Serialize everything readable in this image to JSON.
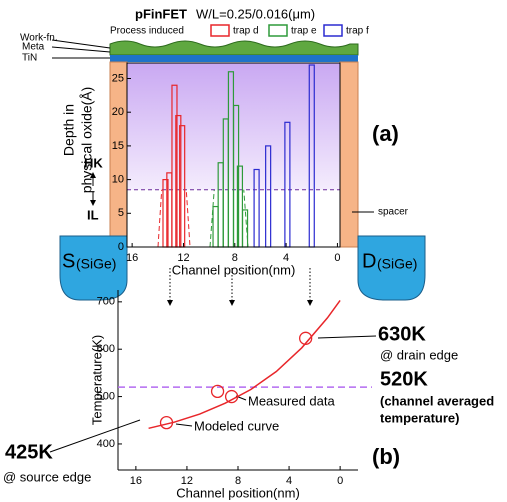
{
  "chart_data": [
    {
      "type": "bar",
      "title": "pFinFET",
      "subtitle": "W/L=0.25/0.016(μm)",
      "legend_title": "Process induced",
      "xlabel": "Channel position(nm)",
      "ylabel_lines": [
        "Depth in",
        "physical oxide(Å)"
      ],
      "xlim": [
        16.4,
        -0.2
      ],
      "xticks": [
        16,
        12,
        8,
        4,
        0
      ],
      "ylim": [
        0,
        27.3
      ],
      "yticks": [
        0,
        5,
        10,
        15,
        20,
        25
      ],
      "series": [
        {
          "name": "trap d",
          "color": "#e8262a",
          "x": [
            13.4,
            13.1,
            12.7,
            12.4,
            12.1
          ],
          "values": [
            10,
            11,
            24,
            19.5,
            18
          ]
        },
        {
          "name": "trap e",
          "color": "#2e9a3a",
          "x": [
            9.5,
            9.1,
            8.7,
            8.3,
            7.9,
            7.6,
            7.2
          ],
          "values": [
            6,
            12.5,
            19,
            26,
            21,
            12,
            5.5
          ]
        },
        {
          "name": "trap f",
          "color": "#2b2bd0",
          "x": [
            6.3,
            5.4,
            3.9,
            2.0
          ],
          "values": [
            11.5,
            15,
            18.5,
            27
          ]
        }
      ],
      "hk_il_boundary": 8.5,
      "hk_label": "HK",
      "il_label": "IL",
      "layer_labels": [
        "Work-fn.",
        "Meta",
        "TiN"
      ],
      "spacer_label": "spacer",
      "source": [
        "S",
        "(SiGe)"
      ],
      "drain": [
        "D",
        "(SiGe)"
      ],
      "panel_label": "(a)"
    },
    {
      "type": "line",
      "xlabel": "Channel position(nm)",
      "ylabel": "Temperature(K)",
      "xlim": [
        17.4,
        -1.4
      ],
      "xticks": [
        16,
        12,
        8,
        4,
        0
      ],
      "ylim": [
        345,
        725
      ],
      "yticks": [
        400,
        500,
        600,
        700
      ],
      "series": [
        {
          "name": "Modeled curve",
          "color": "#e8262a",
          "x": [
            15,
            13,
            11,
            9,
            7,
            5,
            3,
            1,
            0
          ],
          "values": [
            433,
            446,
            463,
            486,
            515,
            553,
            603,
            666,
            703
          ]
        },
        {
          "name": "Measured data",
          "color": "#e8262a",
          "marker": "circle",
          "x": [
            13.6,
            9.6,
            8.5,
            2.7
          ],
          "values": [
            445,
            511,
            500,
            623
          ]
        }
      ],
      "reference_line": {
        "value": 520,
        "label": "520K",
        "note_lines": [
          "(channel averaged",
          "temperature)"
        ],
        "color": "#b36bf0"
      },
      "drain_annotation": {
        "label": "630K",
        "note": "@ drain edge"
      },
      "source_annotation": {
        "label": "425K",
        "note": "@ source edge"
      },
      "panel_label": "(b)"
    }
  ]
}
